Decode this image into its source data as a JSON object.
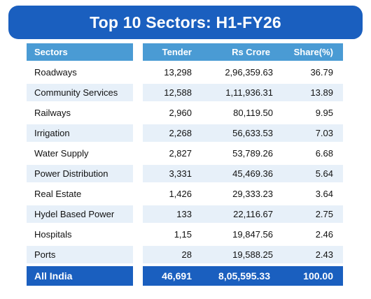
{
  "title": "Top 10 Sectors: H1-FY26",
  "columns": {
    "sector": "Sectors",
    "tender": "Tender",
    "crore": "Rs Crore",
    "share": "Share(%)"
  },
  "rows": [
    {
      "sector": "Roadways",
      "tender": "13,298",
      "crore": "2,96,359.63",
      "share": "36.79"
    },
    {
      "sector": "Community Services",
      "tender": "12,588",
      "crore": "1,11,936.31",
      "share": "13.89"
    },
    {
      "sector": "Railways",
      "tender": "2,960",
      "crore": "80,119.50",
      "share": "9.95"
    },
    {
      "sector": "Irrigation",
      "tender": "2,268",
      "crore": "56,633.53",
      "share": "7.03"
    },
    {
      "sector": "Water Supply",
      "tender": "2,827",
      "crore": "53,789.26",
      "share": "6.68"
    },
    {
      "sector": "Power Distribution",
      "tender": "3,331",
      "crore": "45,469.36",
      "share": "5.64"
    },
    {
      "sector": "Real Estate",
      "tender": "1,426",
      "crore": "29,333.23",
      "share": "3.64"
    },
    {
      "sector": "Hydel Based Power",
      "tender": "133",
      "crore": "22,116.67",
      "share": "2.75"
    },
    {
      "sector": "Hospitals",
      "tender": "1,15",
      "crore": "19,847.56",
      "share": "2.46"
    },
    {
      "sector": "Ports",
      "tender": "28",
      "crore": "19,588.25",
      "share": "2.43"
    }
  ],
  "total": {
    "sector": "All India",
    "tender": "46,691",
    "crore": "8,05,595.33",
    "share": "100.00"
  }
}
